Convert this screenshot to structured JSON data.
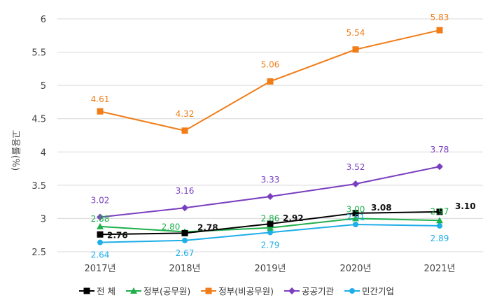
{
  "chart_data": {
    "type": "line",
    "title": "",
    "xlabel": "",
    "ylabel": "고용률(%)",
    "categories": [
      "2017년",
      "2018년",
      "2019년",
      "2020년",
      "2021년"
    ],
    "ylim": [
      2.5,
      6
    ],
    "yticks": [
      "2.5",
      "3",
      "3.5",
      "4",
      "4.5",
      "5",
      "5.5",
      "6"
    ],
    "grid": true,
    "legend_position": "bottom",
    "series": [
      {
        "name": "전 체",
        "color": "#000000",
        "marker": "square",
        "values": [
          2.76,
          2.78,
          2.92,
          3.08,
          3.1
        ],
        "labels": [
          "2.76",
          "2.78",
          "2.92",
          "3.08",
          "3.10"
        ]
      },
      {
        "name": "정부(공무원)",
        "color": "#1fb04c",
        "marker": "triangle",
        "values": [
          2.88,
          2.8,
          2.86,
          3.0,
          2.97
        ],
        "labels": [
          "2.88",
          "2.80",
          "2.86",
          "3.00",
          "2.97"
        ]
      },
      {
        "name": "정부(비공무원)",
        "color": "#f07d18",
        "marker": "square",
        "values": [
          4.61,
          4.32,
          5.06,
          5.54,
          5.83
        ],
        "labels": [
          "4.61",
          "4.32",
          "5.06",
          "5.54",
          "5.83"
        ]
      },
      {
        "name": "공공기관",
        "color": "#7a3fbf",
        "marker": "diamond",
        "values": [
          3.02,
          3.16,
          3.33,
          3.52,
          3.78
        ],
        "labels": [
          "3.02",
          "3.16",
          "3.33",
          "3.52",
          "3.78"
        ]
      },
      {
        "name": "민간기업",
        "color": "#1eaee8",
        "marker": "circle",
        "values": [
          2.64,
          2.67,
          2.79,
          2.91,
          2.89
        ],
        "labels": [
          "2.64",
          "2.67",
          "2.79",
          "2.91",
          "2.89"
        ]
      }
    ]
  }
}
